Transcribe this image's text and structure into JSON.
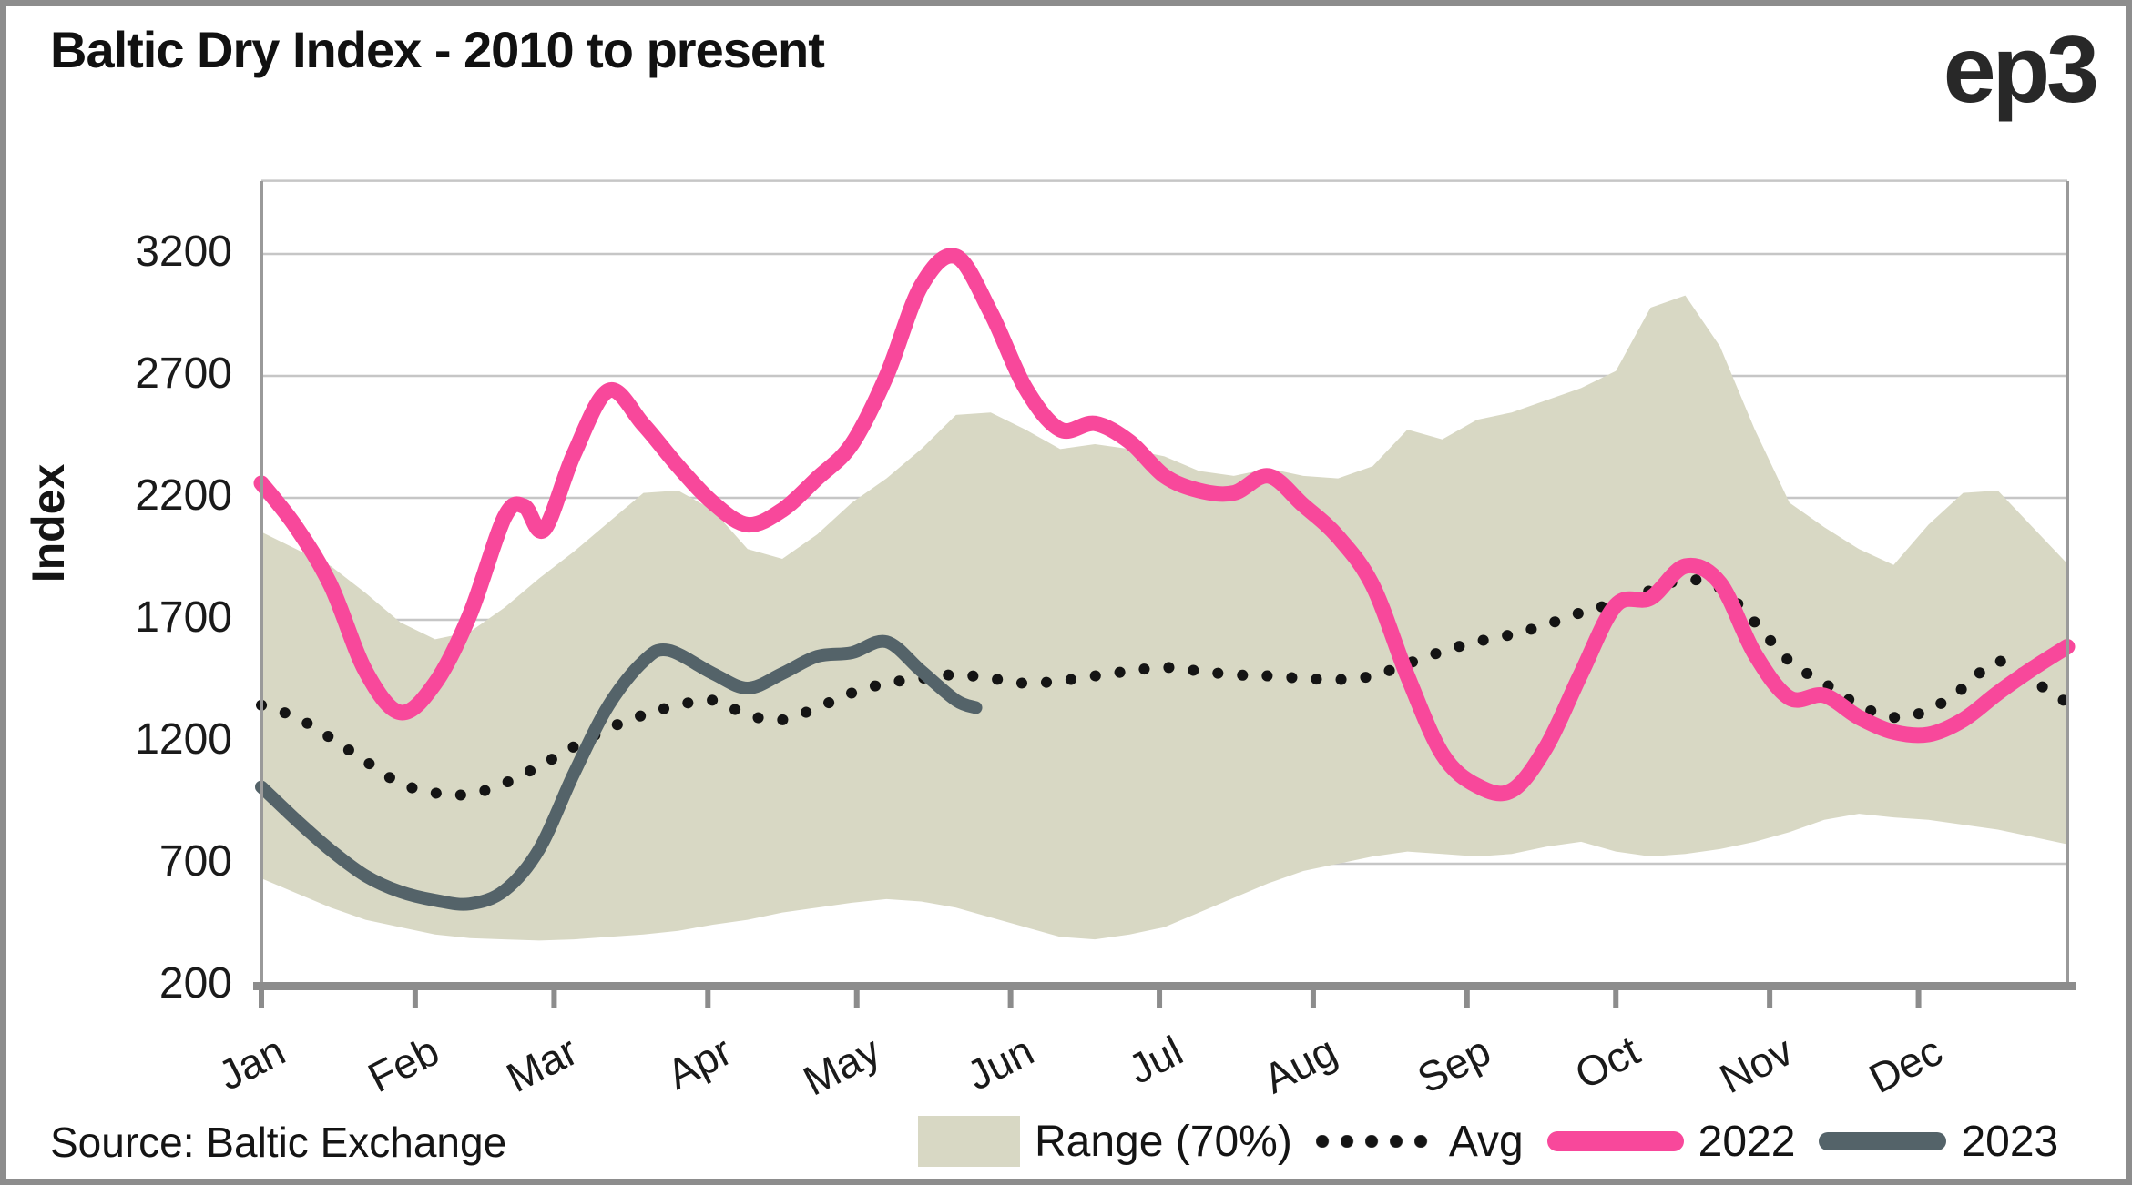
{
  "header": {
    "title": "Baltic Dry Index - 2010 to present",
    "logo": "ep3"
  },
  "source_note": "Source: Baltic Exchange",
  "y_axis": {
    "title": "Index",
    "ticks": [
      "3200",
      "2700",
      "2200",
      "1700",
      "1200",
      "700",
      "200"
    ]
  },
  "x_axis": {
    "months": [
      "Jan",
      "Feb",
      "Mar",
      "Apr",
      "May",
      "Jun",
      "Jul",
      "Aug",
      "Sep",
      "Oct",
      "Nov",
      "Dec"
    ]
  },
  "legend": [
    {
      "label": "Range (70%)",
      "swatch": "band",
      "color": "#d8d8c4"
    },
    {
      "label": "Avg",
      "swatch": "dotted",
      "color": "#141414"
    },
    {
      "label": "2022",
      "swatch": "line",
      "color": "#f8489b"
    },
    {
      "label": "2023",
      "swatch": "line",
      "color": "#546369"
    }
  ],
  "colors": {
    "band": "#d8d8c4",
    "avg": "#141414",
    "y2022": "#f8489b",
    "y2023": "#546369",
    "grid": "#c6c6c6",
    "axis": "#8c8c8c",
    "border": "#9a9a9a",
    "text": "#141414"
  },
  "chart_data": {
    "type": "line",
    "title": "Baltic Dry Index - 2010 to present",
    "xlabel": "",
    "ylabel": "Index",
    "ylim": [
      200,
      3500
    ],
    "y_tick_values": [
      3200,
      2700,
      2200,
      1700,
      1200,
      700,
      200
    ],
    "grid": "horizontal",
    "legend_position": "bottom",
    "x_unit": "day_of_year",
    "series": [
      {
        "name": "Range (70%)",
        "type": "band",
        "color": "#d8d8c4",
        "days": [
          0,
          7,
          14,
          21,
          28,
          35,
          42,
          49,
          56,
          63,
          70,
          77,
          84,
          91,
          98,
          105,
          112,
          119,
          126,
          133,
          140,
          147,
          154,
          161,
          168,
          175,
          182,
          189,
          196,
          203,
          210,
          217,
          224,
          231,
          238,
          245,
          252,
          259,
          266,
          273,
          280,
          287,
          294,
          301,
          308,
          315,
          322,
          329,
          336,
          343,
          350,
          357,
          364
        ],
        "high": [
          2060,
          1990,
          1920,
          1810,
          1690,
          1620,
          1650,
          1750,
          1870,
          1980,
          2100,
          2220,
          2230,
          2150,
          1990,
          1950,
          2050,
          2180,
          2280,
          2400,
          2540,
          2550,
          2480,
          2400,
          2420,
          2400,
          2370,
          2310,
          2290,
          2320,
          2290,
          2280,
          2330,
          2480,
          2440,
          2520,
          2550,
          2600,
          2650,
          2720,
          2980,
          3030,
          2820,
          2480,
          2180,
          2080,
          1990,
          1925,
          2090,
          2220,
          2230,
          2080,
          1930
        ],
        "low": [
          640,
          580,
          520,
          470,
          440,
          410,
          395,
          390,
          385,
          390,
          400,
          410,
          425,
          450,
          470,
          500,
          520,
          540,
          555,
          545,
          520,
          480,
          440,
          400,
          390,
          410,
          440,
          500,
          560,
          620,
          670,
          700,
          730,
          750,
          740,
          730,
          740,
          770,
          790,
          750,
          730,
          740,
          760,
          790,
          830,
          880,
          905,
          890,
          880,
          860,
          840,
          810,
          780
        ]
      },
      {
        "name": "Avg",
        "type": "dotted-line",
        "color": "#141414",
        "days": [
          0,
          7,
          14,
          21,
          28,
          35,
          42,
          49,
          56,
          63,
          70,
          77,
          84,
          91,
          98,
          105,
          112,
          119,
          126,
          133,
          140,
          147,
          154,
          161,
          168,
          175,
          182,
          189,
          196,
          203,
          210,
          217,
          224,
          231,
          238,
          245,
          252,
          259,
          266,
          273,
          280,
          287,
          294,
          301,
          308,
          315,
          322,
          329,
          336,
          343,
          350,
          357,
          364
        ],
        "values": [
          1350,
          1300,
          1215,
          1120,
          1030,
          990,
          985,
          1030,
          1100,
          1180,
          1255,
          1310,
          1350,
          1370,
          1310,
          1290,
          1340,
          1400,
          1440,
          1460,
          1475,
          1460,
          1440,
          1450,
          1470,
          1490,
          1505,
          1490,
          1475,
          1470,
          1460,
          1455,
          1470,
          1520,
          1570,
          1610,
          1640,
          1680,
          1730,
          1770,
          1820,
          1865,
          1830,
          1690,
          1530,
          1440,
          1350,
          1300,
          1330,
          1420,
          1530,
          1450,
          1360
        ]
      },
      {
        "name": "2022",
        "type": "line",
        "color": "#f8489b",
        "days": [
          0,
          7,
          14,
          21,
          28,
          35,
          42,
          49,
          53,
          57,
          63,
          70,
          77,
          84,
          91,
          98,
          105,
          112,
          119,
          126,
          133,
          140,
          147,
          154,
          161,
          168,
          175,
          182,
          189,
          196,
          203,
          210,
          217,
          224,
          231,
          238,
          245,
          252,
          259,
          266,
          273,
          280,
          287,
          294,
          301,
          308,
          315,
          322,
          329,
          336,
          343,
          350,
          357,
          364
        ],
        "values": [
          2260,
          2080,
          1840,
          1490,
          1320,
          1440,
          1720,
          2120,
          2165,
          2070,
          2380,
          2640,
          2500,
          2330,
          2180,
          2090,
          2150,
          2280,
          2420,
          2700,
          3070,
          3190,
          2960,
          2650,
          2480,
          2505,
          2430,
          2290,
          2230,
          2220,
          2290,
          2170,
          2040,
          1840,
          1470,
          1150,
          1020,
          1000,
          1180,
          1480,
          1760,
          1790,
          1920,
          1850,
          1560,
          1380,
          1390,
          1300,
          1240,
          1230,
          1290,
          1400,
          1500,
          1590
        ]
      },
      {
        "name": "2023",
        "type": "line",
        "color": "#546369",
        "days": [
          0,
          7,
          14,
          21,
          28,
          35,
          42,
          49,
          56,
          63,
          70,
          77,
          82,
          91,
          98,
          105,
          112,
          119,
          126,
          133,
          140,
          144
        ],
        "values": [
          1015,
          880,
          755,
          650,
          585,
          550,
          535,
          590,
          760,
          1070,
          1350,
          1530,
          1575,
          1480,
          1420,
          1480,
          1550,
          1565,
          1610,
          1490,
          1370,
          1340
        ]
      }
    ]
  }
}
